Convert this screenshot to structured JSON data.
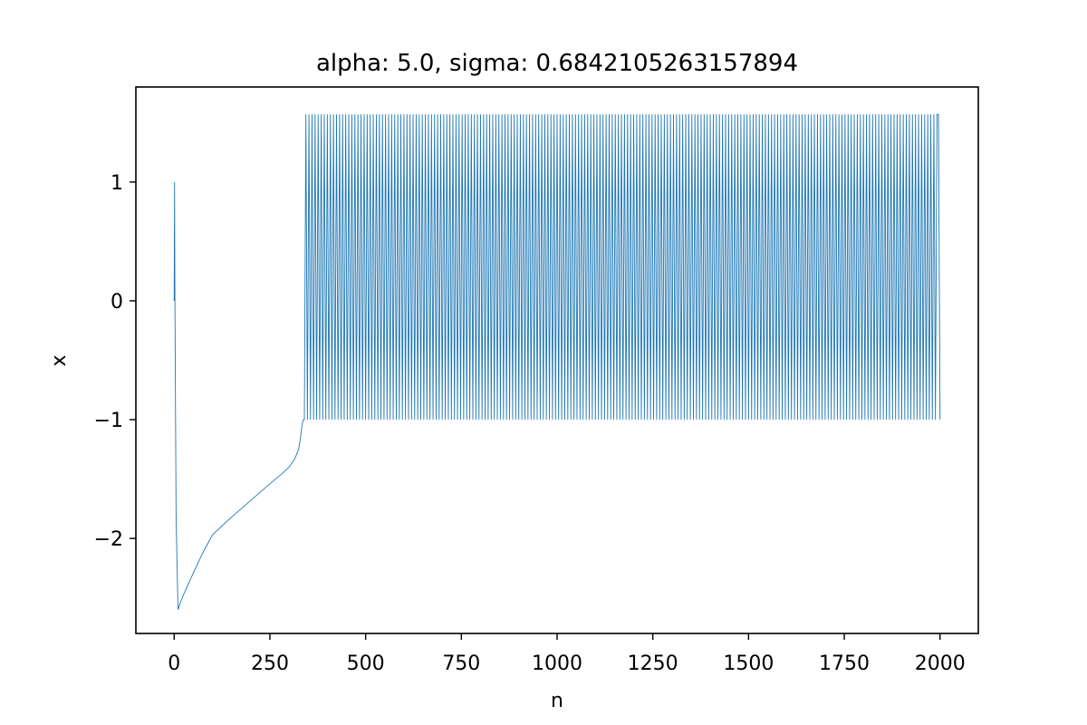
{
  "chart_data": {
    "type": "line",
    "title": "alpha: 5.0, sigma: 0.6842105263157894",
    "xlabel": "n",
    "ylabel": "x",
    "xlim": [
      -100,
      2100
    ],
    "ylim": [
      -2.8,
      1.8
    ],
    "xticks": [
      0,
      250,
      500,
      750,
      1000,
      1250,
      1500,
      1750,
      2000
    ],
    "xtick_labels": [
      "0",
      "250",
      "500",
      "750",
      "1000",
      "1250",
      "1500",
      "1750",
      "2000"
    ],
    "yticks": [
      1,
      0,
      -1,
      -2
    ],
    "ytick_labels": [
      "1",
      "0",
      "−1",
      "−2"
    ],
    "grid": false,
    "series_color": "#1f77b4",
    "series": [
      {
        "x": [
          0,
          1,
          2,
          5,
          10,
          15,
          25,
          50,
          75,
          100,
          150,
          200,
          250,
          280,
          300,
          315,
          325,
          330,
          334,
          336,
          338
        ],
        "y": [
          0,
          1.0,
          0.0,
          -1.8,
          -2.6,
          -2.55,
          -2.47,
          -2.29,
          -2.12,
          -1.97,
          -1.82,
          -1.68,
          -1.54,
          -1.46,
          -1.4,
          -1.33,
          -1.25,
          -1.15,
          -1.05,
          -1.01,
          -1.0
        ]
      }
    ],
    "oscillation": {
      "x_start": 340,
      "x_end": 2000,
      "period": 8,
      "y_max": 1.57,
      "y_min": -1.0,
      "end_value": -0.87
    }
  }
}
